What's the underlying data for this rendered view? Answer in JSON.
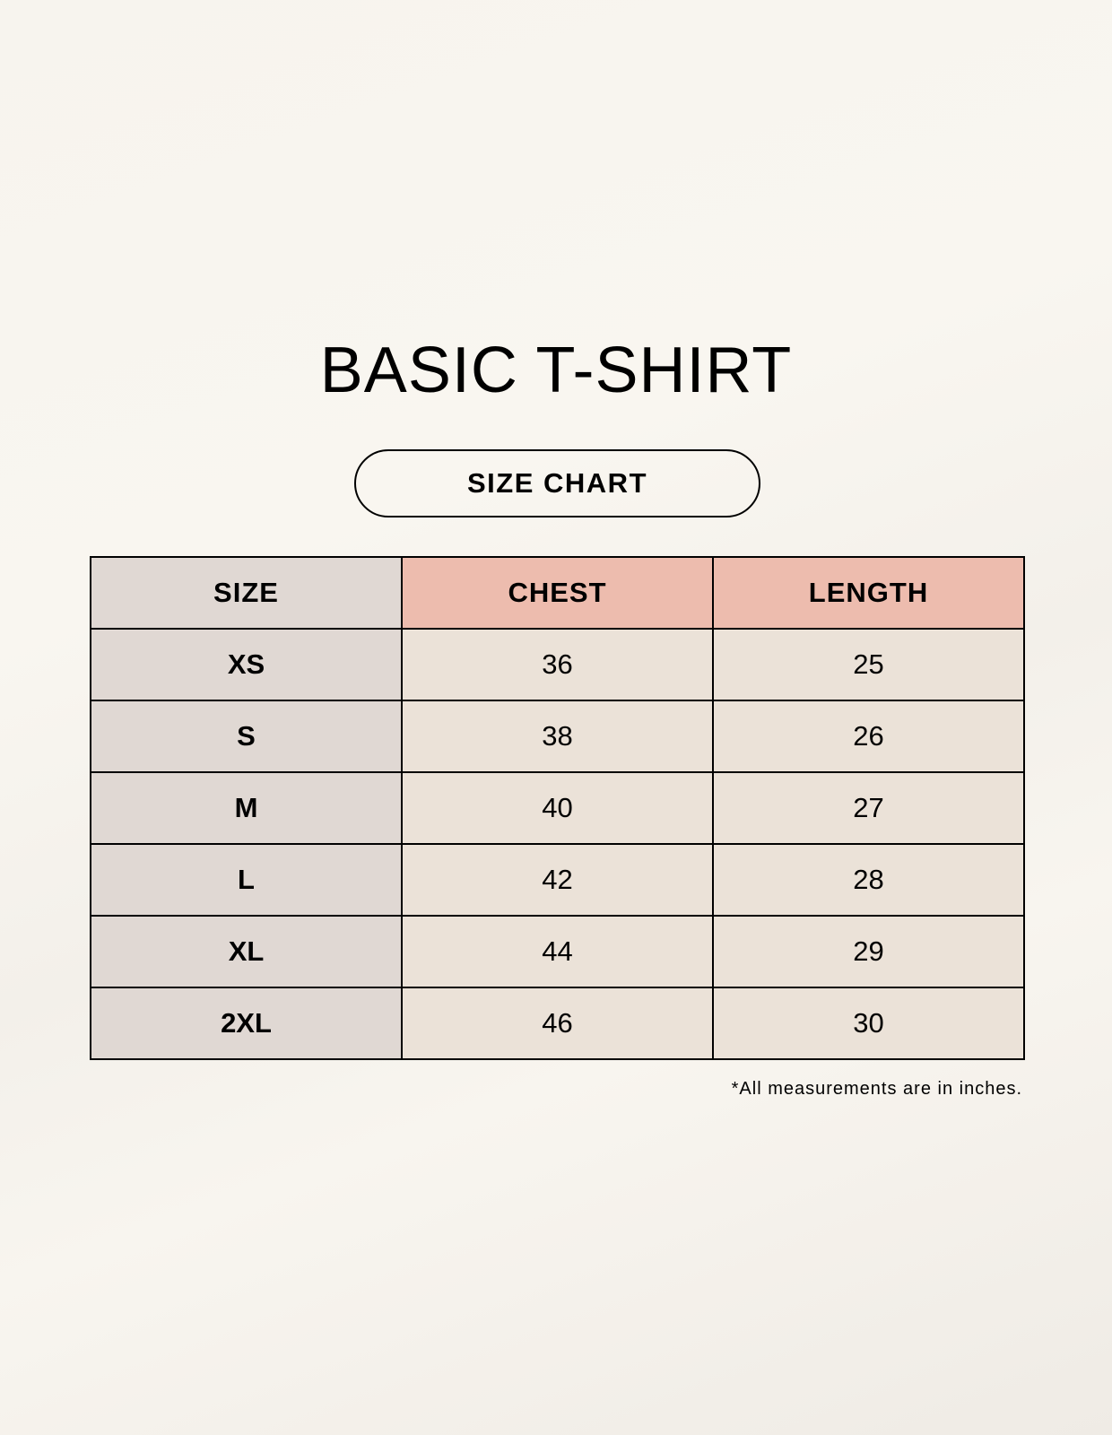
{
  "title": "BASIC T-SHIRT",
  "subtitle": "SIZE CHART",
  "table": {
    "headers": [
      "SIZE",
      "CHEST",
      "LENGTH"
    ],
    "rows": [
      [
        "XS",
        "36",
        "25"
      ],
      [
        "S",
        "38",
        "26"
      ],
      [
        "M",
        "40",
        "27"
      ],
      [
        "L",
        "42",
        "28"
      ],
      [
        "XL",
        "44",
        "29"
      ],
      [
        "2XL",
        "46",
        "30"
      ]
    ]
  },
  "footnote": "*All measurements are in inches.",
  "colors": {
    "size_column": "#e0d8d3",
    "header_accent": "#edbcae",
    "value_cells": "#ebe2d8"
  }
}
